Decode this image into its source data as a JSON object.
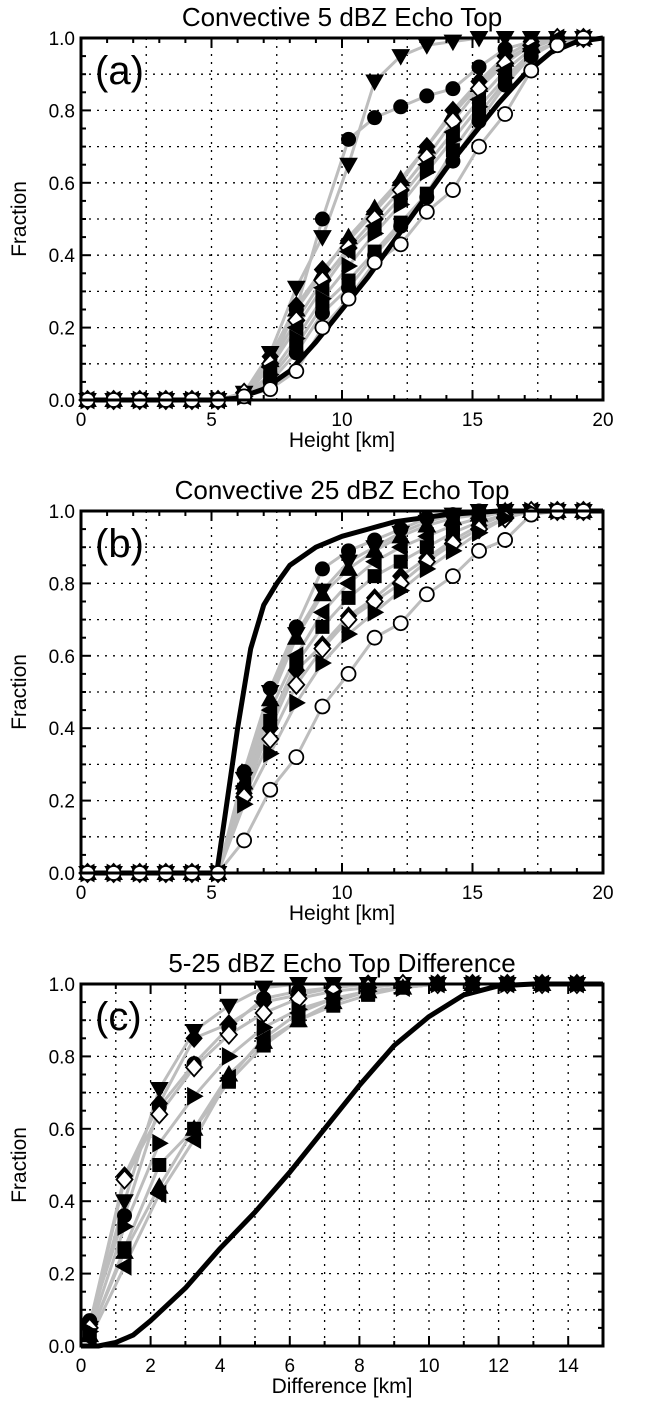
{
  "chart_data": [
    {
      "type": "line",
      "panel_label": "(a)",
      "title": "Convective 5 dBZ Echo Top",
      "xlabel": "Height [km]",
      "ylabel": "Fraction",
      "xlim": [
        0,
        20
      ],
      "ylim": [
        0,
        1
      ],
      "xticks": [
        0,
        5,
        10,
        15,
        20
      ],
      "xtick_labels": [
        "0",
        "5",
        "10",
        "15",
        "20"
      ],
      "yticks": [
        0,
        0.2,
        0.4,
        0.6,
        0.8,
        1.0
      ],
      "ytick_labels": [
        "0.0",
        "0.2",
        "0.4",
        "0.6",
        "0.8",
        "1.0"
      ],
      "grid": true,
      "x": [
        0.25,
        1.25,
        2.25,
        3.25,
        4.25,
        5.25,
        6.25,
        7.25,
        8.25,
        9.25,
        10.25,
        11.25,
        12.25,
        13.25,
        14.25,
        15.25,
        16.25,
        17.25,
        18.25,
        19.25
      ],
      "reference_curve": {
        "x": [
          0,
          5,
          6,
          7,
          8,
          9,
          10,
          11,
          12,
          13,
          14,
          15,
          16,
          17,
          18,
          19,
          20
        ],
        "values": [
          0,
          0,
          0.005,
          0.03,
          0.08,
          0.16,
          0.25,
          0.34,
          0.44,
          0.54,
          0.64,
          0.73,
          0.82,
          0.9,
          0.96,
          0.99,
          1.0
        ]
      },
      "series": [
        {
          "marker": "filled-circle",
          "values": [
            0,
            0,
            0,
            0,
            0,
            0,
            0.02,
            0.1,
            0.25,
            0.5,
            0.72,
            0.78,
            0.81,
            0.84,
            0.86,
            0.92,
            0.97,
            0.99,
            1.0,
            1.0
          ]
        },
        {
          "marker": "filled-triangle-down",
          "values": [
            0,
            0,
            0,
            0,
            0,
            0,
            0.02,
            0.13,
            0.31,
            0.45,
            0.65,
            0.88,
            0.95,
            0.98,
            0.99,
            1.0,
            1.0,
            1.0,
            1.0,
            1.0
          ]
        },
        {
          "marker": "filled-diamond",
          "values": [
            0,
            0,
            0,
            0,
            0,
            0,
            0.02,
            0.12,
            0.26,
            0.36,
            0.44,
            0.52,
            0.6,
            0.7,
            0.8,
            0.88,
            0.95,
            0.99,
            1.0,
            1.0
          ]
        },
        {
          "marker": "filled-triangle-up",
          "values": [
            0,
            0,
            0,
            0,
            0,
            0,
            0.02,
            0.11,
            0.25,
            0.35,
            0.45,
            0.53,
            0.61,
            0.7,
            0.79,
            0.87,
            0.94,
            0.98,
            1.0,
            1.0
          ]
        },
        {
          "marker": "open-diamond",
          "values": [
            0,
            0,
            0,
            0,
            0,
            0,
            0.02,
            0.1,
            0.22,
            0.33,
            0.42,
            0.5,
            0.58,
            0.67,
            0.77,
            0.86,
            0.93,
            0.98,
            1.0,
            1.0
          ]
        },
        {
          "marker": "filled-triangle-left",
          "values": [
            0,
            0,
            0,
            0,
            0,
            0,
            0.01,
            0.09,
            0.2,
            0.31,
            0.41,
            0.48,
            0.56,
            0.65,
            0.74,
            0.83,
            0.91,
            0.97,
            1.0,
            1.0
          ]
        },
        {
          "marker": "filled-triangle-right",
          "values": [
            0,
            0,
            0,
            0,
            0,
            0,
            0.01,
            0.07,
            0.17,
            0.28,
            0.37,
            0.46,
            0.54,
            0.63,
            0.72,
            0.81,
            0.89,
            0.96,
            0.99,
            1.0
          ]
        },
        {
          "marker": "filled-square",
          "values": [
            0,
            0,
            0,
            0,
            0,
            0,
            0.01,
            0.06,
            0.15,
            0.26,
            0.33,
            0.41,
            0.49,
            0.57,
            0.69,
            0.79,
            0.88,
            0.96,
            0.99,
            1.0
          ]
        },
        {
          "marker": "filled-circle",
          "values": [
            0,
            0,
            0,
            0,
            0,
            0,
            0.01,
            0.05,
            0.13,
            0.24,
            0.31,
            0.4,
            0.48,
            0.56,
            0.66,
            0.77,
            0.87,
            0.95,
            0.99,
            1.0
          ]
        },
        {
          "marker": "open-circle",
          "values": [
            0,
            0,
            0,
            0,
            0,
            0,
            0.01,
            0.03,
            0.08,
            0.2,
            0.28,
            0.38,
            0.43,
            0.52,
            0.58,
            0.7,
            0.79,
            0.91,
            0.98,
            1.0
          ]
        }
      ]
    },
    {
      "type": "line",
      "panel_label": "(b)",
      "title": "Convective 25 dBZ Echo Top",
      "xlabel": "Height [km]",
      "ylabel": "Fraction",
      "xlim": [
        0,
        20
      ],
      "ylim": [
        0,
        1
      ],
      "xticks": [
        0,
        5,
        10,
        15,
        20
      ],
      "xtick_labels": [
        "0",
        "5",
        "10",
        "15",
        "20"
      ],
      "yticks": [
        0,
        0.2,
        0.4,
        0.6,
        0.8,
        1.0
      ],
      "ytick_labels": [
        "0.0",
        "0.2",
        "0.4",
        "0.6",
        "0.8",
        "1.0"
      ],
      "grid": true,
      "x": [
        0.25,
        1.25,
        2.25,
        3.25,
        4.25,
        5.25,
        6.25,
        7.25,
        8.25,
        9.25,
        10.25,
        11.25,
        12.25,
        13.25,
        14.25,
        15.25,
        16.25,
        17.25,
        18.25,
        19.25
      ],
      "reference_curve": {
        "x": [
          0,
          5.2,
          5.5,
          6,
          6.5,
          7,
          7.5,
          8,
          9,
          10,
          11,
          12,
          13,
          14,
          15,
          16,
          17,
          18,
          19,
          20
        ],
        "values": [
          0,
          0,
          0.15,
          0.4,
          0.62,
          0.74,
          0.8,
          0.85,
          0.9,
          0.93,
          0.95,
          0.97,
          0.98,
          0.99,
          0.995,
          1.0,
          1.0,
          1.0,
          1.0,
          1.0
        ]
      },
      "series": [
        {
          "marker": "filled-circle",
          "values": [
            0,
            0,
            0,
            0,
            0,
            0,
            0.28,
            0.51,
            0.68,
            0.84,
            0.89,
            0.92,
            0.95,
            0.98,
            0.99,
            1.0,
            1.0,
            1.0,
            1.0,
            1.0
          ]
        },
        {
          "marker": "filled-triangle-down",
          "values": [
            0,
            0,
            0,
            0,
            0,
            0,
            0.26,
            0.5,
            0.66,
            0.78,
            0.86,
            0.9,
            0.94,
            0.97,
            0.99,
            1.0,
            1.0,
            1.0,
            1.0,
            1.0
          ]
        },
        {
          "marker": "filled-triangle-up",
          "values": [
            0,
            0,
            0,
            0,
            0,
            0,
            0.25,
            0.48,
            0.65,
            0.77,
            0.84,
            0.89,
            0.93,
            0.96,
            0.98,
            0.99,
            1.0,
            1.0,
            1.0,
            1.0
          ]
        },
        {
          "marker": "filled-triangle-left",
          "values": [
            0,
            0,
            0,
            0,
            0,
            0,
            0.24,
            0.45,
            0.6,
            0.72,
            0.8,
            0.86,
            0.9,
            0.93,
            0.96,
            0.98,
            1.0,
            1.0,
            1.0,
            1.0
          ]
        },
        {
          "marker": "filled-square",
          "values": [
            0,
            0,
            0,
            0,
            0,
            0,
            0.23,
            0.42,
            0.58,
            0.68,
            0.76,
            0.82,
            0.86,
            0.9,
            0.94,
            0.97,
            0.99,
            1.0,
            1.0,
            1.0
          ]
        },
        {
          "marker": "filled-diamond",
          "values": [
            0,
            0,
            0,
            0,
            0,
            0,
            0.22,
            0.4,
            0.56,
            0.63,
            0.71,
            0.76,
            0.82,
            0.87,
            0.92,
            0.96,
            0.99,
            1.0,
            1.0,
            1.0
          ]
        },
        {
          "marker": "open-diamond",
          "values": [
            0,
            0,
            0,
            0,
            0,
            0,
            0.21,
            0.37,
            0.52,
            0.62,
            0.7,
            0.75,
            0.8,
            0.86,
            0.91,
            0.95,
            0.98,
            1.0,
            1.0,
            1.0
          ]
        },
        {
          "marker": "filled-triangle-right",
          "values": [
            0,
            0,
            0,
            0,
            0,
            0,
            0.19,
            0.33,
            0.47,
            0.58,
            0.66,
            0.72,
            0.78,
            0.84,
            0.89,
            0.94,
            0.98,
            1.0,
            1.0,
            1.0
          ]
        },
        {
          "marker": "open-circle",
          "values": [
            0,
            0,
            0,
            0,
            0,
            0,
            0.09,
            0.23,
            0.32,
            0.46,
            0.55,
            0.65,
            0.69,
            0.77,
            0.82,
            0.89,
            0.92,
            0.99,
            1.0,
            1.0
          ]
        }
      ]
    },
    {
      "type": "line",
      "panel_label": "(c)",
      "title": "5-25 dBZ Echo Top Difference",
      "xlabel": "Difference [km]",
      "ylabel": "Fraction",
      "xlim": [
        0,
        15
      ],
      "ylim": [
        0,
        1
      ],
      "xticks": [
        0,
        2,
        4,
        6,
        8,
        10,
        12,
        14
      ],
      "xtick_labels": [
        "0",
        "2",
        "4",
        "6",
        "8",
        "10",
        "12",
        "14"
      ],
      "yticks": [
        0,
        0.2,
        0.4,
        0.6,
        0.8,
        1.0
      ],
      "ytick_labels": [
        "0.0",
        "0.2",
        "0.4",
        "0.6",
        "0.8",
        "1.0"
      ],
      "grid": true,
      "x": [
        0.25,
        1.25,
        2.25,
        3.25,
        4.25,
        5.25,
        6.25,
        7.25,
        8.25,
        9.25,
        10.25,
        11.25,
        12.25,
        13.25,
        14.25
      ],
      "reference_curve": {
        "x": [
          0,
          0.5,
          1,
          1.5,
          2,
          3,
          4,
          5,
          6,
          7,
          8,
          9,
          10,
          11,
          12,
          13,
          14,
          15
        ],
        "values": [
          0,
          0,
          0.01,
          0.03,
          0.07,
          0.16,
          0.27,
          0.37,
          0.48,
          0.6,
          0.72,
          0.83,
          0.91,
          0.97,
          0.995,
          1.0,
          1.0,
          1.0
        ]
      },
      "series": [
        {
          "marker": "filled-circle",
          "values": [
            0.07,
            0.36,
            0.66,
            0.78,
            0.88,
            0.96,
            0.98,
            0.99,
            1.0,
            1.0,
            1.0,
            1.0,
            1.0,
            1.0,
            1.0
          ]
        },
        {
          "marker": "filled-diamond",
          "values": [
            0.06,
            0.47,
            0.67,
            0.85,
            0.89,
            0.95,
            0.97,
            0.99,
            1.0,
            1.0,
            1.0,
            1.0,
            1.0,
            1.0,
            1.0
          ]
        },
        {
          "marker": "filled-triangle-down",
          "values": [
            0.05,
            0.4,
            0.71,
            0.87,
            0.94,
            0.99,
            1.0,
            1.0,
            1.0,
            1.0,
            1.0,
            1.0,
            1.0,
            1.0,
            1.0
          ]
        },
        {
          "marker": "open-diamond",
          "values": [
            0.05,
            0.46,
            0.64,
            0.77,
            0.86,
            0.92,
            0.96,
            0.98,
            0.99,
            1.0,
            1.0,
            1.0,
            1.0,
            1.0,
            1.0
          ]
        },
        {
          "marker": "filled-triangle-right",
          "values": [
            0.04,
            0.33,
            0.56,
            0.69,
            0.8,
            0.88,
            0.93,
            0.96,
            0.98,
            0.99,
            1.0,
            1.0,
            1.0,
            1.0,
            1.0
          ]
        },
        {
          "marker": "filled-square",
          "values": [
            0.03,
            0.27,
            0.5,
            0.6,
            0.73,
            0.83,
            0.9,
            0.94,
            0.97,
            0.99,
            1.0,
            1.0,
            1.0,
            1.0,
            1.0
          ]
        },
        {
          "marker": "filled-triangle-up",
          "values": [
            0.03,
            0.26,
            0.44,
            0.6,
            0.75,
            0.84,
            0.9,
            0.95,
            0.98,
            0.99,
            1.0,
            1.0,
            1.0,
            1.0,
            1.0
          ]
        },
        {
          "marker": "filled-triangle-left",
          "values": [
            0.02,
            0.22,
            0.42,
            0.57,
            0.74,
            0.85,
            0.92,
            0.96,
            0.98,
            0.99,
            1.0,
            1.0,
            1.0,
            1.0,
            1.0
          ]
        }
      ]
    }
  ]
}
